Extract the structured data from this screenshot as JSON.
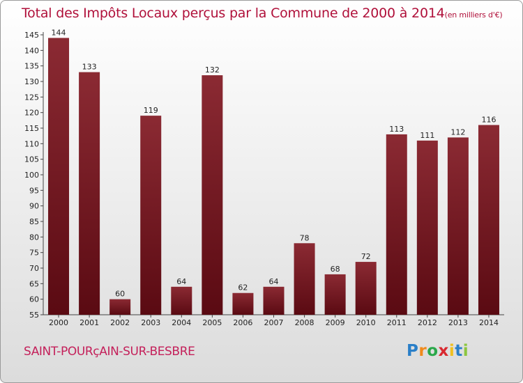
{
  "title": "Total des Impôts Locaux perçus par la Commune de 2000 à 2014",
  "title_unit": "(en milliers d'€)",
  "commune": "SAINT-POURçAIN-SUR-BESBRE",
  "logo": {
    "letters": [
      "P",
      "r",
      "o",
      "x",
      "i",
      "t",
      "i"
    ],
    "colors": [
      "#2a7fc8",
      "#f08a1c",
      "#2aa84a",
      "#d8282f",
      "#f0c020",
      "#2a7fc8",
      "#8cc63f"
    ]
  },
  "colors": {
    "bar_top": "#8b2a33",
    "bar_bottom": "#5a0a12",
    "title": "#b0103a",
    "commune": "#c4205a"
  },
  "chart_data": {
    "type": "bar",
    "title": "Total des Impôts Locaux perçus par la Commune de 2000 à 2014",
    "ylabel": "en milliers d'€",
    "xlabel": "",
    "categories": [
      "2000",
      "2001",
      "2002",
      "2003",
      "2004",
      "2005",
      "2006",
      "2007",
      "2008",
      "2009",
      "2010",
      "2011",
      "2012",
      "2013",
      "2014"
    ],
    "values": [
      144,
      133,
      60,
      119,
      64,
      132,
      62,
      64,
      78,
      68,
      72,
      113,
      111,
      112,
      116
    ],
    "ylim": [
      55,
      145
    ],
    "yticks": [
      55,
      60,
      65,
      70,
      75,
      80,
      85,
      90,
      95,
      100,
      105,
      110,
      115,
      120,
      125,
      130,
      135,
      140,
      145
    ],
    "grid": false
  }
}
